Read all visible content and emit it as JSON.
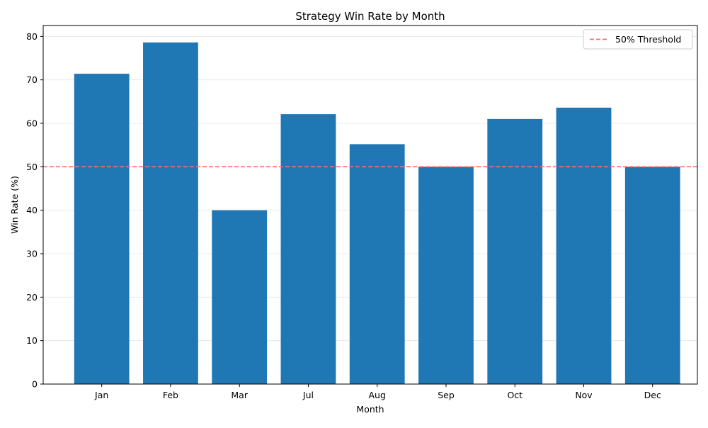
{
  "chart_data": {
    "type": "bar",
    "title": "Strategy Win Rate by Month",
    "xlabel": "Month",
    "ylabel": "Win Rate (%)",
    "categories": [
      "Jan",
      "Feb",
      "Mar",
      "Jul",
      "Aug",
      "Sep",
      "Oct",
      "Nov",
      "Dec"
    ],
    "values": [
      71.4,
      78.6,
      40.0,
      62.1,
      55.2,
      50.0,
      61.0,
      63.6,
      50.0
    ],
    "ylim": [
      0,
      82.5
    ],
    "yticks": [
      0,
      10,
      20,
      30,
      40,
      50,
      60,
      70,
      80
    ],
    "bar_color": "#1f77b4",
    "grid": "horizontal",
    "threshold": {
      "value": 50,
      "label": "50% Threshold",
      "color": "#ff6b6b",
      "style": "dashed"
    },
    "legend_position": "top-right"
  }
}
